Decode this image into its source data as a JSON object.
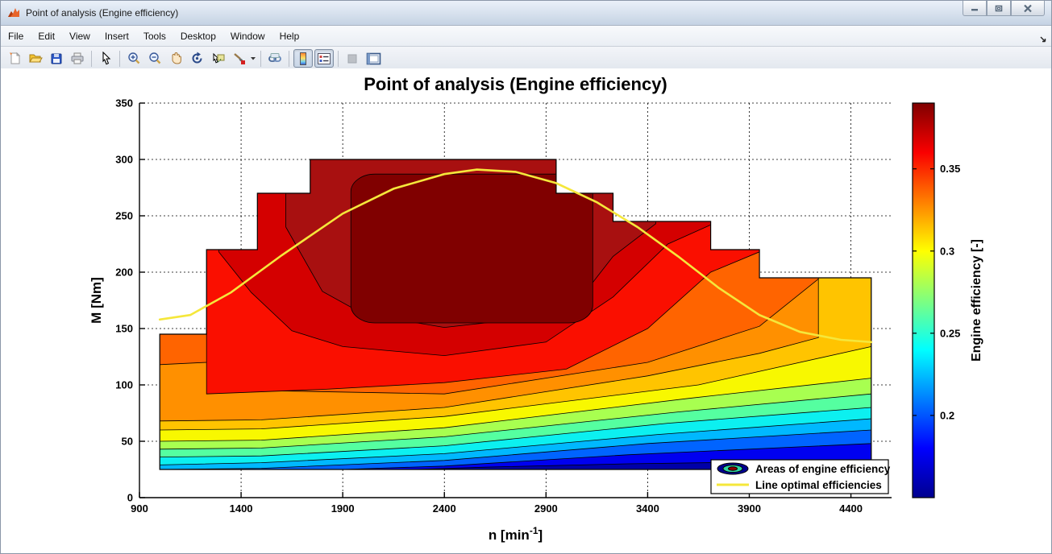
{
  "window": {
    "title": "Point of analysis (Engine efficiency)",
    "controls": [
      {
        "name": "minimize"
      },
      {
        "name": "restore"
      },
      {
        "name": "close"
      }
    ]
  },
  "menu": {
    "items": [
      {
        "label": "File"
      },
      {
        "label": "Edit"
      },
      {
        "label": "View"
      },
      {
        "label": "Insert"
      },
      {
        "label": "Tools"
      },
      {
        "label": "Desktop"
      },
      {
        "label": "Window"
      },
      {
        "label": "Help"
      }
    ]
  },
  "toolbar": {
    "buttons": [
      {
        "name": "new-figure"
      },
      {
        "name": "open-file"
      },
      {
        "name": "save-figure"
      },
      {
        "name": "print-figure"
      },
      {
        "name": "edit-plot"
      },
      {
        "name": "zoom-in"
      },
      {
        "name": "zoom-out"
      },
      {
        "name": "pan"
      },
      {
        "name": "rotate-3d"
      },
      {
        "name": "data-cursor"
      },
      {
        "name": "brush-data"
      },
      {
        "name": "link-plot"
      },
      {
        "name": "insert-colorbar",
        "pressed": true
      },
      {
        "name": "insert-legend",
        "pressed": true
      },
      {
        "name": "hide-plot-tools",
        "disabled": true
      },
      {
        "name": "show-plot-tools-dock"
      }
    ]
  },
  "chart_data": {
    "type": "filled_contour",
    "title": "Point of analysis (Engine efficiency)",
    "xlabel": "n [min⁻¹]",
    "xlabel_parts": {
      "base": "n [min",
      "sup": "-1",
      "end": "]"
    },
    "ylabel": "M [Nm]",
    "xlim": [
      900,
      4600
    ],
    "ylim": [
      0,
      350
    ],
    "x_ticks": [
      900,
      1400,
      1900,
      2400,
      2900,
      3400,
      3900,
      4400
    ],
    "y_ticks": [
      0,
      50,
      100,
      150,
      200,
      250,
      300,
      350
    ],
    "grid": "dashed",
    "base_color": "#0000a8",
    "envelope": [
      [
        1000,
        25
      ],
      [
        1000,
        145
      ],
      [
        1230,
        145
      ],
      [
        1230,
        220
      ],
      [
        1480,
        220
      ],
      [
        1480,
        270
      ],
      [
        1740,
        270
      ],
      [
        1740,
        300
      ],
      [
        2950,
        300
      ],
      [
        2950,
        270
      ],
      [
        3230,
        270
      ],
      [
        3230,
        245
      ],
      [
        3710,
        245
      ],
      [
        3710,
        220
      ],
      [
        3950,
        220
      ],
      [
        3950,
        195
      ],
      [
        4500,
        195
      ],
      [
        4500,
        25
      ]
    ],
    "bands": [
      {
        "level": 0.18,
        "color": "#0000f0",
        "boundary": [
          [
            1000,
            25
          ],
          [
            2250,
            25
          ],
          [
            2600,
            27
          ],
          [
            3300,
            30
          ],
          [
            4500,
            33
          ]
        ]
      },
      {
        "level": 0.2,
        "color": "#0064ff",
        "boundary": [
          [
            1000,
            25
          ],
          [
            1900,
            25
          ],
          [
            2400,
            28
          ],
          [
            3300,
            38
          ],
          [
            4500,
            48
          ]
        ]
      },
      {
        "level": 0.22,
        "color": "#00b8ff",
        "boundary": [
          [
            1000,
            25
          ],
          [
            1500,
            26
          ],
          [
            2400,
            33
          ],
          [
            3400,
            48
          ],
          [
            4500,
            60
          ]
        ]
      },
      {
        "level": 0.24,
        "color": "#0cf0f0",
        "boundary": [
          [
            1000,
            29
          ],
          [
            1500,
            31
          ],
          [
            2400,
            39
          ],
          [
            3450,
            56
          ],
          [
            4500,
            70
          ]
        ]
      },
      {
        "level": 0.26,
        "color": "#55ffa0",
        "boundary": [
          [
            1000,
            36
          ],
          [
            1500,
            37
          ],
          [
            2400,
            46
          ],
          [
            3500,
            66
          ],
          [
            4500,
            80
          ]
        ]
      },
      {
        "level": 0.28,
        "color": "#a8ff50",
        "boundary": [
          [
            1000,
            43
          ],
          [
            1500,
            44
          ],
          [
            2400,
            54
          ],
          [
            3550,
            76
          ],
          [
            4500,
            92
          ]
        ]
      },
      {
        "level": 0.3,
        "color": "#f8f800",
        "boundary": [
          [
            1000,
            50
          ],
          [
            1500,
            51
          ],
          [
            2400,
            62
          ],
          [
            3600,
            88
          ],
          [
            4500,
            106
          ]
        ]
      },
      {
        "level": 0.32,
        "color": "#ffc400",
        "boundary": [
          [
            1000,
            60
          ],
          [
            1500,
            61
          ],
          [
            2400,
            72
          ],
          [
            3650,
            100
          ],
          [
            4500,
            134
          ]
        ]
      },
      {
        "level": 0.33,
        "color": "#ff9000",
        "boundary": [
          [
            1000,
            68
          ],
          [
            1500,
            69
          ],
          [
            2400,
            80
          ],
          [
            3400,
            108
          ],
          [
            3950,
            128
          ],
          [
            4240,
            142
          ]
        ]
      },
      {
        "level": 0.34,
        "color": "#ff6400",
        "boundary": [
          [
            1000,
            118
          ],
          [
            1230,
            120
          ],
          [
            1500,
            95
          ],
          [
            2400,
            92
          ],
          [
            3400,
            120
          ],
          [
            3950,
            152
          ],
          [
            4240,
            194
          ]
        ]
      },
      {
        "level": 0.36,
        "color": "#fa0f00",
        "boundary": [
          [
            1230,
            92
          ],
          [
            1800,
            96
          ],
          [
            2400,
            102
          ],
          [
            3000,
            114
          ],
          [
            3400,
            150
          ],
          [
            3710,
            200
          ],
          [
            3950,
            218
          ]
        ]
      },
      {
        "level": 0.37,
        "color": "#d40000",
        "boundary": [
          [
            1290,
            218
          ],
          [
            1450,
            182
          ],
          [
            1650,
            148
          ],
          [
            1900,
            134
          ],
          [
            2400,
            126
          ],
          [
            2900,
            138
          ],
          [
            3230,
            178
          ],
          [
            3500,
            225
          ],
          [
            3710,
            242
          ]
        ]
      },
      {
        "level": 0.38,
        "color": "#a81010",
        "boundary": [
          [
            1620,
            240
          ],
          [
            1800,
            183
          ],
          [
            2000,
            163
          ],
          [
            2400,
            151
          ],
          [
            2900,
            161
          ],
          [
            3100,
            184
          ],
          [
            3230,
            214
          ],
          [
            3440,
            243
          ]
        ]
      }
    ],
    "core": {
      "level": 0.39,
      "color": "#800000",
      "n": [
        1940,
        3130
      ],
      "m": [
        155,
        287
      ]
    },
    "optimal_line": {
      "color": "#f5e73b",
      "points": [
        [
          1000,
          158
        ],
        [
          1150,
          162
        ],
        [
          1350,
          182
        ],
        [
          1600,
          215
        ],
        [
          1900,
          252
        ],
        [
          2150,
          274
        ],
        [
          2400,
          287
        ],
        [
          2560,
          291
        ],
        [
          2750,
          289
        ],
        [
          2950,
          279
        ],
        [
          3150,
          262
        ],
        [
          3350,
          240
        ],
        [
          3550,
          214
        ],
        [
          3750,
          186
        ],
        [
          3950,
          162
        ],
        [
          4150,
          147
        ],
        [
          4350,
          140
        ],
        [
          4500,
          138
        ]
      ]
    },
    "colorbar": {
      "label": "Engine efficiency [-]",
      "ticks": [
        0.2,
        0.25,
        0.3,
        0.35
      ],
      "range": [
        0.15,
        0.39
      ],
      "gradient": [
        [
          0,
          "#7f0000"
        ],
        [
          0.125,
          "#fa0000"
        ],
        [
          0.25,
          "#ff7f00"
        ],
        [
          0.375,
          "#ffff00"
        ],
        [
          0.5,
          "#7fff7f"
        ],
        [
          0.625,
          "#00ffff"
        ],
        [
          0.75,
          "#007fff"
        ],
        [
          0.875,
          "#0000ff"
        ],
        [
          1,
          "#00008f"
        ]
      ]
    },
    "legend": {
      "entries": [
        {
          "type": "contour-patch",
          "label": "Areas of engine efficiency",
          "icon_colors": [
            "#000090",
            "#2fd4a0",
            "#8b0000"
          ]
        },
        {
          "type": "line",
          "label": "Line optimal efficiencies",
          "color": "#f5e73b"
        }
      ]
    }
  }
}
